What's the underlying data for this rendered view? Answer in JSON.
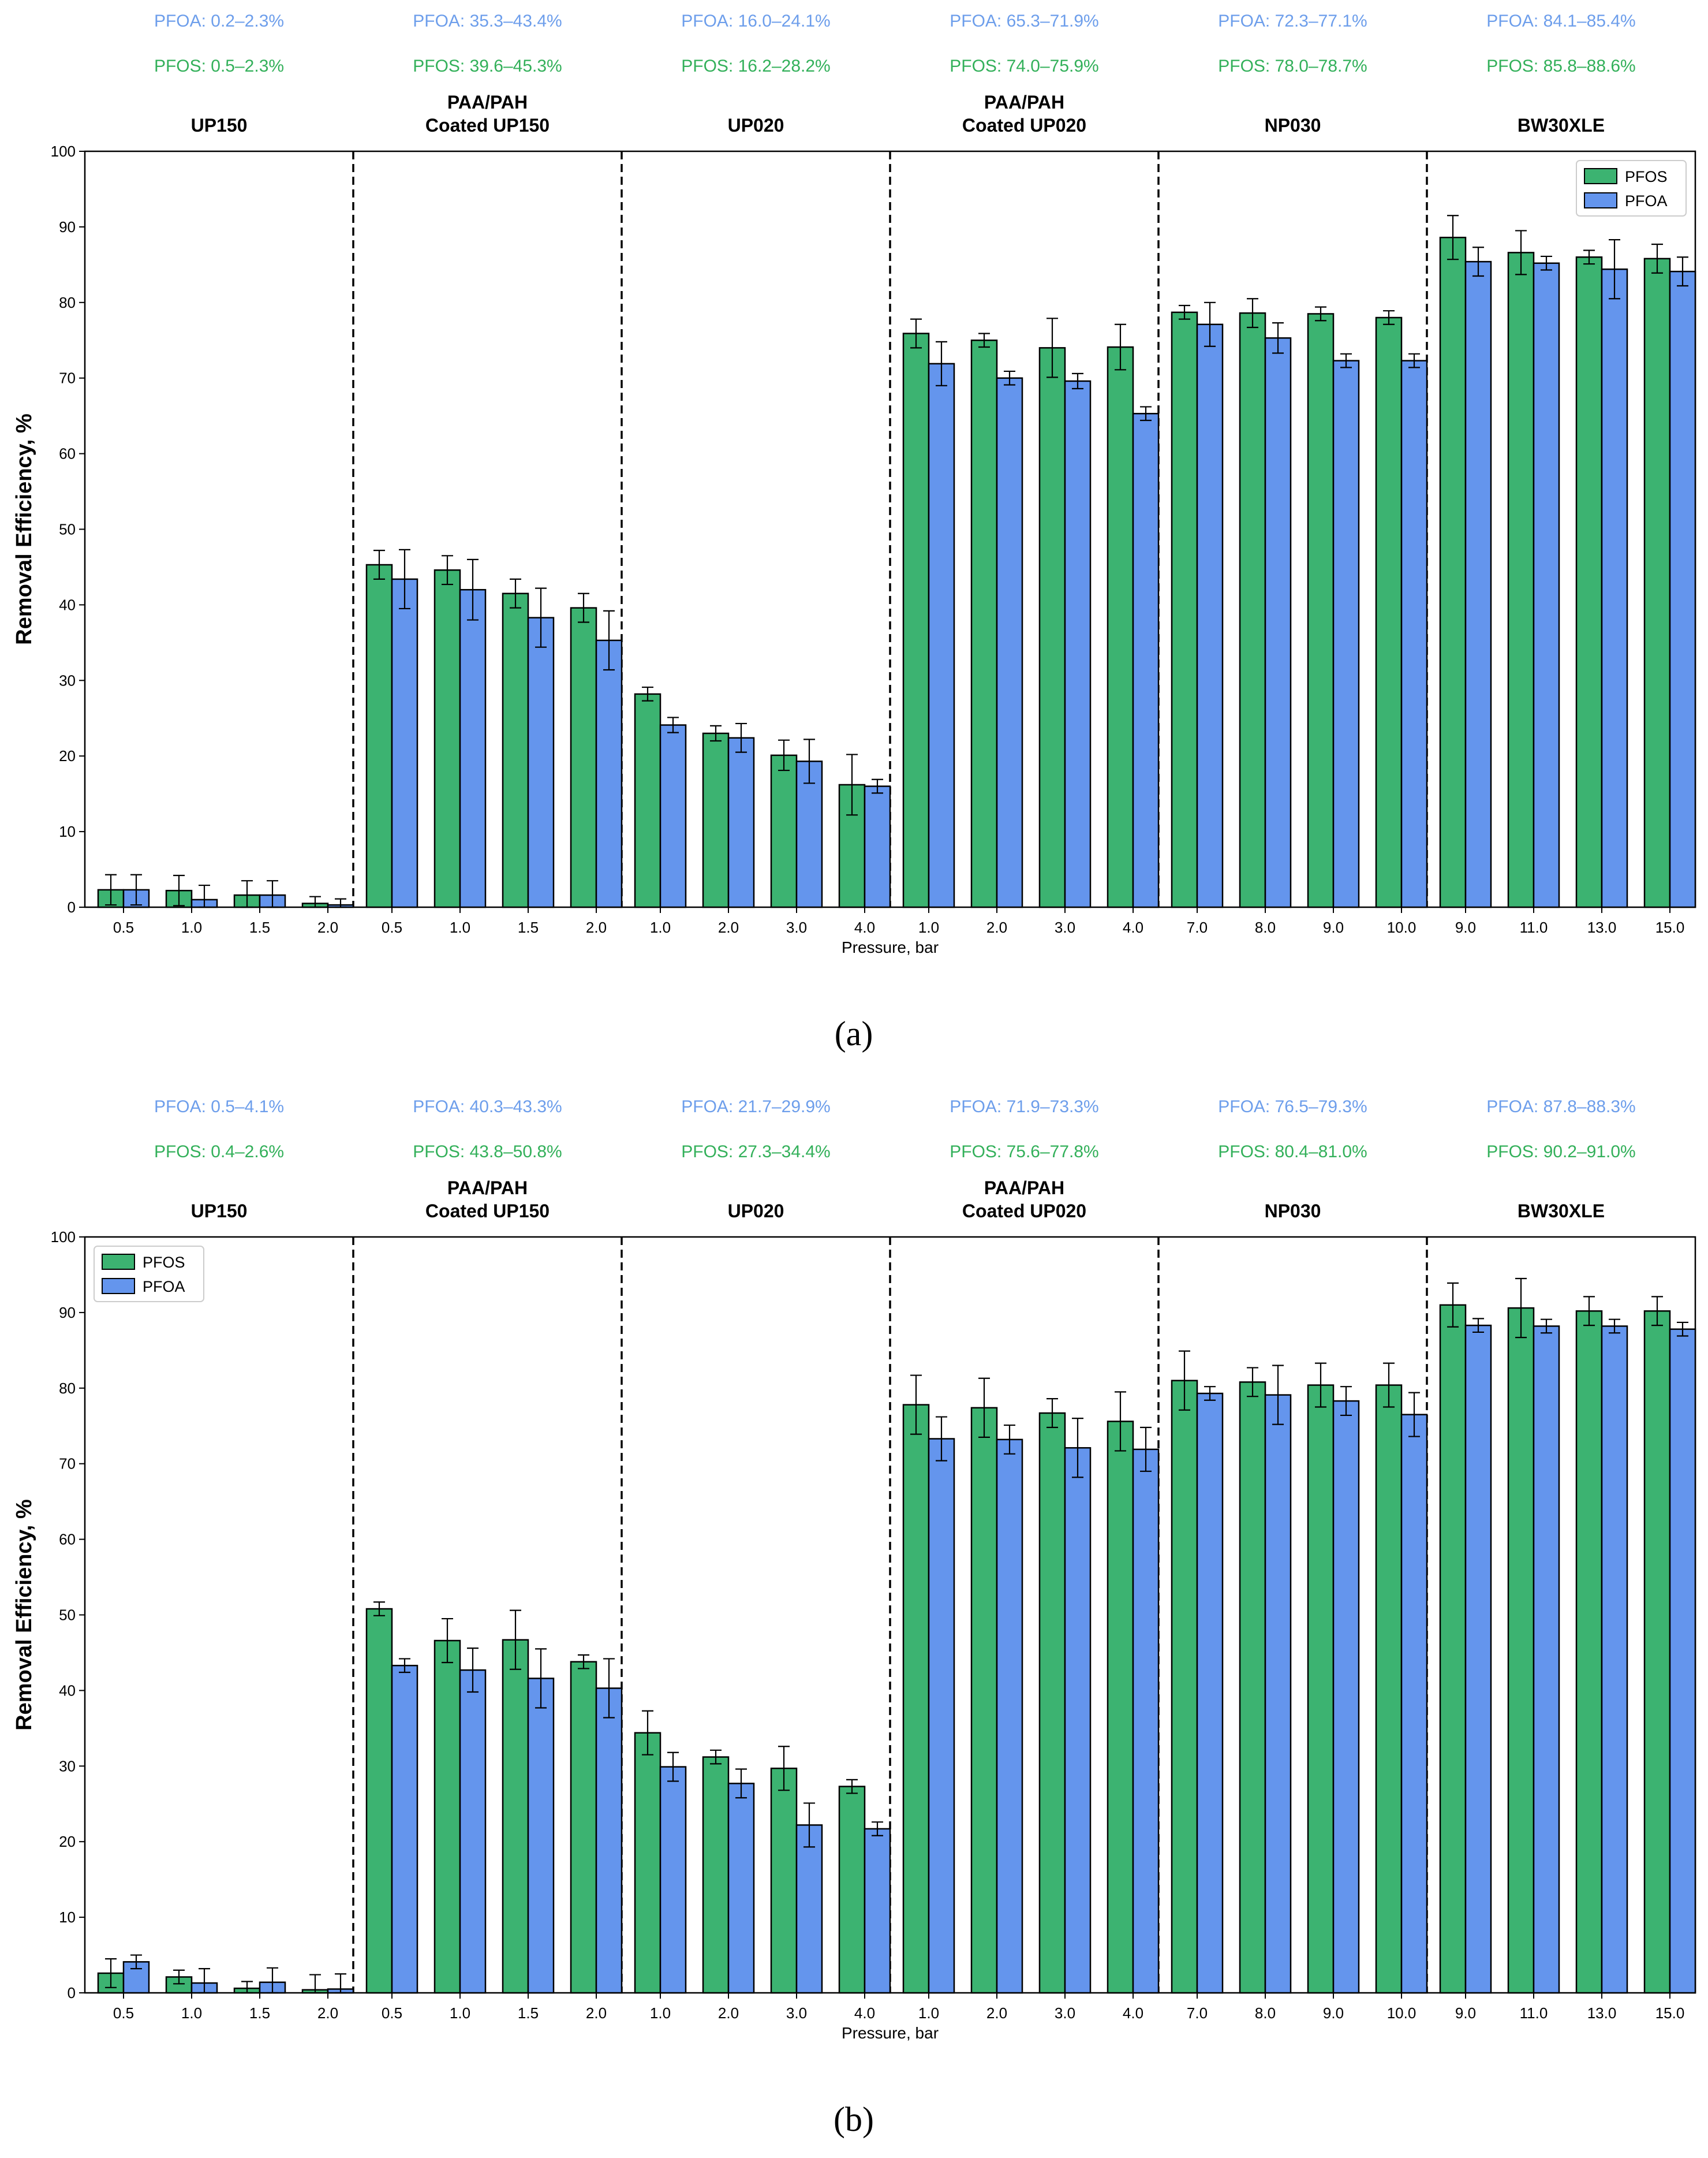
{
  "colors": {
    "pfos": "#3cb371",
    "pfoa": "#6495ed",
    "pfos_text": "#33b05a",
    "pfoa_text": "#6d9eeb"
  },
  "chart_data": [
    {
      "type": "bar",
      "panel_label": "(a)",
      "ylabel": "Removal Efficiency, %",
      "xlabel": "Pressure, bar",
      "ylim": [
        0,
        100
      ],
      "yticks": [
        0,
        10,
        20,
        30,
        40,
        50,
        60,
        70,
        80,
        90,
        100
      ],
      "legend_position": "upper-right",
      "series_names": [
        "PFOS",
        "PFOA"
      ],
      "groups": [
        {
          "name": "UP150",
          "pfoa_range": "PFOA: 0.2–2.3%",
          "pfos_range": "PFOS: 0.5–2.3%",
          "categories": [
            "0.5",
            "1.0",
            "1.5",
            "2.0"
          ],
          "pfos": [
            2.3,
            2.2,
            1.6,
            0.5
          ],
          "pfos_err": [
            2.0,
            2.0,
            1.9,
            0.9
          ],
          "pfoa": [
            2.3,
            1.0,
            1.6,
            0.3
          ],
          "pfoa_err": [
            2.0,
            1.9,
            1.9,
            0.8
          ]
        },
        {
          "name": "PAA/PAH\nCoated UP150",
          "pfoa_range": "PFOA: 35.3–43.4%",
          "pfos_range": "PFOS: 39.6–45.3%",
          "categories": [
            "0.5",
            "1.0",
            "1.5",
            "2.0"
          ],
          "pfos": [
            45.3,
            44.6,
            41.5,
            39.6
          ],
          "pfos_err": [
            1.9,
            1.9,
            1.9,
            1.9
          ],
          "pfoa": [
            43.4,
            42.0,
            38.3,
            35.3
          ],
          "pfoa_err": [
            3.9,
            4.0,
            3.9,
            3.9
          ]
        },
        {
          "name": "UP020",
          "pfoa_range": "PFOA: 16.0–24.1%",
          "pfos_range": "PFOS: 16.2–28.2%",
          "categories": [
            "1.0",
            "2.0",
            "3.0",
            "4.0"
          ],
          "pfos": [
            28.2,
            23.0,
            20.1,
            16.2
          ],
          "pfos_err": [
            0.9,
            1.0,
            2.0,
            4.0
          ],
          "pfoa": [
            24.1,
            22.4,
            19.3,
            16.0
          ],
          "pfoa_err": [
            1.0,
            1.9,
            2.9,
            0.9
          ]
        },
        {
          "name": "PAA/PAH\nCoated UP020",
          "pfoa_range": "PFOA: 65.3–71.9%",
          "pfos_range": "PFOS: 74.0–75.9%",
          "categories": [
            "1.0",
            "2.0",
            "3.0",
            "4.0"
          ],
          "pfos": [
            75.9,
            75.0,
            74.0,
            74.1
          ],
          "pfos_err": [
            1.9,
            0.9,
            3.9,
            3.0
          ],
          "pfoa": [
            71.9,
            70.0,
            69.6,
            65.3
          ],
          "pfoa_err": [
            2.9,
            0.9,
            1.0,
            0.9
          ]
        },
        {
          "name": "NP030",
          "pfoa_range": "PFOA: 72.3–77.1%",
          "pfos_range": "PFOS: 78.0–78.7%",
          "categories": [
            "7.0",
            "8.0",
            "9.0",
            "10.0"
          ],
          "pfos": [
            78.7,
            78.6,
            78.5,
            78.0
          ],
          "pfos_err": [
            0.9,
            1.9,
            0.9,
            0.9
          ],
          "pfoa": [
            77.1,
            75.3,
            72.3,
            72.3
          ],
          "pfoa_err": [
            2.9,
            2.0,
            0.9,
            0.9
          ]
        },
        {
          "name": "BW30XLE",
          "pfoa_range": "PFOA: 84.1–85.4%",
          "pfos_range": "PFOS: 85.8–88.6%",
          "categories": [
            "9.0",
            "11.0",
            "13.0",
            "15.0"
          ],
          "pfos": [
            88.6,
            86.6,
            86.0,
            85.8
          ],
          "pfos_err": [
            2.9,
            2.9,
            0.9,
            1.9
          ],
          "pfoa": [
            85.4,
            85.2,
            84.4,
            84.1
          ],
          "pfoa_err": [
            1.9,
            0.9,
            3.9,
            1.9
          ]
        }
      ]
    },
    {
      "type": "bar",
      "panel_label": "(b)",
      "ylabel": "Removal Efficiency, %",
      "xlabel": "Pressure, bar",
      "ylim": [
        0,
        100
      ],
      "yticks": [
        0,
        10,
        20,
        30,
        40,
        50,
        60,
        70,
        80,
        90,
        100
      ],
      "legend_position": "upper-left",
      "series_names": [
        "PFOS",
        "PFOA"
      ],
      "groups": [
        {
          "name": "UP150",
          "pfoa_range": "PFOA: 0.5–4.1%",
          "pfos_range": "PFOS: 0.4–2.6%",
          "categories": [
            "0.5",
            "1.0",
            "1.5",
            "2.0"
          ],
          "pfos": [
            2.6,
            2.1,
            0.6,
            0.4
          ],
          "pfos_err": [
            1.9,
            0.9,
            0.9,
            2.0
          ],
          "pfoa": [
            4.1,
            1.3,
            1.4,
            0.5
          ],
          "pfoa_err": [
            0.9,
            1.9,
            1.9,
            2.0
          ]
        },
        {
          "name": "PAA/PAH\nCoated UP150",
          "pfoa_range": "PFOA: 40.3–43.3%",
          "pfos_range": "PFOS: 43.8–50.8%",
          "categories": [
            "0.5",
            "1.0",
            "1.5",
            "2.0"
          ],
          "pfos": [
            50.8,
            46.6,
            46.7,
            43.8
          ],
          "pfos_err": [
            0.9,
            2.9,
            3.9,
            0.9
          ],
          "pfoa": [
            43.3,
            42.7,
            41.6,
            40.3
          ],
          "pfoa_err": [
            0.9,
            2.9,
            3.9,
            3.9
          ]
        },
        {
          "name": "UP020",
          "pfoa_range": "PFOA: 21.7–29.9%",
          "pfos_range": "PFOS: 27.3–34.4%",
          "categories": [
            "1.0",
            "2.0",
            "3.0",
            "4.0"
          ],
          "pfos": [
            34.4,
            31.2,
            29.7,
            27.3
          ],
          "pfos_err": [
            2.9,
            0.9,
            2.9,
            0.9
          ],
          "pfoa": [
            29.9,
            27.7,
            22.2,
            21.7
          ],
          "pfoa_err": [
            1.9,
            1.9,
            2.9,
            0.9
          ]
        },
        {
          "name": "PAA/PAH\nCoated UP020",
          "pfoa_range": "PFOA: 71.9–73.3%",
          "pfos_range": "PFOS: 75.6–77.8%",
          "categories": [
            "1.0",
            "2.0",
            "3.0",
            "4.0"
          ],
          "pfos": [
            77.8,
            77.4,
            76.7,
            75.6
          ],
          "pfos_err": [
            3.9,
            3.9,
            1.9,
            3.9
          ],
          "pfoa": [
            73.3,
            73.2,
            72.1,
            71.9
          ],
          "pfoa_err": [
            2.9,
            1.9,
            3.9,
            2.9
          ]
        },
        {
          "name": "NP030",
          "pfoa_range": "PFOA: 76.5–79.3%",
          "pfos_range": "PFOS: 80.4–81.0%",
          "categories": [
            "7.0",
            "8.0",
            "9.0",
            "10.0"
          ],
          "pfos": [
            81.0,
            80.8,
            80.4,
            80.4
          ],
          "pfos_err": [
            3.9,
            1.9,
            2.9,
            2.9
          ],
          "pfoa": [
            79.3,
            79.1,
            78.3,
            76.5
          ],
          "pfoa_err": [
            0.9,
            3.9,
            1.9,
            2.9
          ]
        },
        {
          "name": "BW30XLE",
          "pfoa_range": "PFOA: 87.8–88.3%",
          "pfos_range": "PFOS: 90.2–91.0%",
          "categories": [
            "9.0",
            "11.0",
            "13.0",
            "15.0"
          ],
          "pfos": [
            91.0,
            90.6,
            90.2,
            90.2
          ],
          "pfos_err": [
            2.9,
            3.9,
            1.9,
            1.9
          ],
          "pfoa": [
            88.3,
            88.2,
            88.2,
            87.8
          ],
          "pfoa_err": [
            0.9,
            0.9,
            0.9,
            0.9
          ]
        }
      ]
    }
  ]
}
